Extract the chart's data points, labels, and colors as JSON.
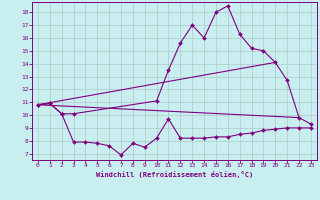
{
  "xlabel": "Windchill (Refroidissement éolien,°C)",
  "xlim": [
    -0.5,
    23.5
  ],
  "ylim": [
    6.5,
    18.8
  ],
  "yticks": [
    7,
    8,
    9,
    10,
    11,
    12,
    13,
    14,
    15,
    16,
    17,
    18
  ],
  "xticks": [
    0,
    1,
    2,
    3,
    4,
    5,
    6,
    7,
    8,
    9,
    10,
    11,
    12,
    13,
    14,
    15,
    16,
    17,
    18,
    19,
    20,
    21,
    22,
    23
  ],
  "bg_color": "#c8eef0",
  "line_color": "#800080",
  "grid_color": "#b0c8c8",
  "line1_x": [
    0,
    1,
    2,
    3,
    10,
    11,
    12,
    13,
    14,
    15,
    16,
    17,
    18,
    19,
    20,
    21,
    22,
    23
  ],
  "line1_y": [
    10.8,
    10.9,
    10.1,
    10.1,
    11.1,
    13.5,
    15.6,
    17.0,
    16.0,
    18.0,
    18.5,
    16.3,
    15.2,
    15.0,
    14.1,
    12.7,
    9.8,
    9.3
  ],
  "line2_x": [
    0,
    20
  ],
  "line2_y": [
    10.8,
    14.1
  ],
  "line3_x": [
    0,
    22
  ],
  "line3_y": [
    10.8,
    9.8
  ],
  "line4_x": [
    0,
    1,
    2,
    3,
    4,
    5,
    6,
    7,
    8,
    9,
    10,
    11,
    12,
    13,
    14,
    15,
    16,
    17,
    18,
    19,
    20,
    21,
    22,
    23
  ],
  "line4_y": [
    10.8,
    10.9,
    10.1,
    7.9,
    7.9,
    7.8,
    7.6,
    6.9,
    7.8,
    7.5,
    8.2,
    9.7,
    8.2,
    8.2,
    8.2,
    8.3,
    8.3,
    8.5,
    8.6,
    8.8,
    8.9,
    9.0,
    9.0,
    9.0
  ]
}
